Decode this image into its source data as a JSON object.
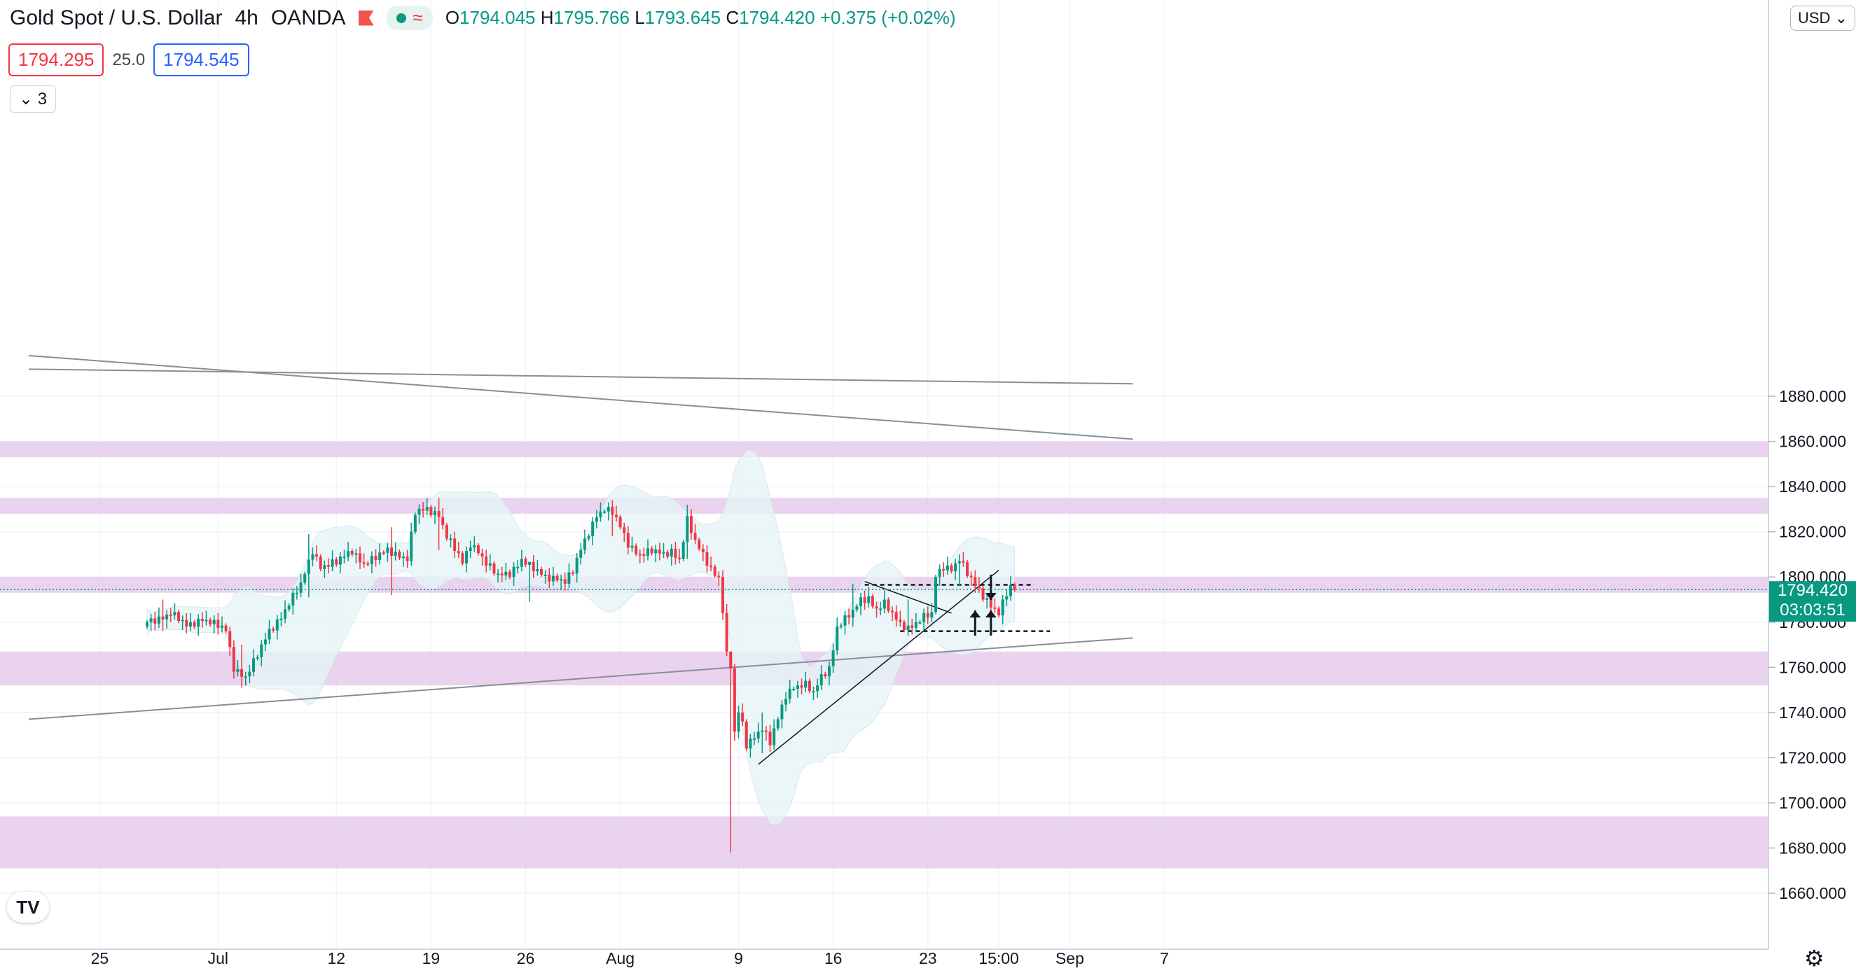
{
  "header": {
    "symbol": "Gold Spot / U.S. Dollar",
    "interval": "4h",
    "source": "OANDA",
    "ohlc": {
      "open_label": "O",
      "open": "1794.045",
      "high_label": "H",
      "high": "1795.766",
      "low_label": "L",
      "low": "1793.645",
      "close_label": "C",
      "close": "1794.420",
      "change": "+0.375 (+0.02%)"
    }
  },
  "trade": {
    "sell": "1794.295",
    "spread": "25.0",
    "buy": "1794.545"
  },
  "indicators_toggle": "3",
  "currency": "USD",
  "logo": "TV",
  "icons": {
    "settings": "gear-icon",
    "flag": "flag-icon",
    "toggle": "chevron-down-icon"
  },
  "colors": {
    "up": "#089981",
    "down": "#f23645",
    "zone": "#e1c4e9",
    "band": "#e6f4f7",
    "price_label": "#089981"
  },
  "chart_data": {
    "type": "candlestick",
    "ylim": [
      1655,
      1885
    ],
    "y_ticks": [
      1660,
      1680,
      1700,
      1720,
      1740,
      1760,
      1780,
      1800,
      1820,
      1840,
      1860,
      1880
    ],
    "y_tick_labels": [
      "1660.000",
      "1680.000",
      "1700.000",
      "1720.000",
      "1740.000",
      "1760.000",
      "1780.000",
      "1800.000",
      "1820.000",
      "1840.000",
      "1860.000",
      "1880.000"
    ],
    "x_tick_labels": [
      "25",
      "Jul",
      "12",
      "19",
      "26",
      "Aug",
      "9",
      "16",
      "23",
      "15:00",
      "Sep",
      "7"
    ],
    "x_tick_index": [
      -12,
      18,
      48,
      72,
      96,
      120,
      150,
      174,
      198,
      216,
      234,
      258
    ],
    "last_price": "1794.420",
    "countdown": "03:03:51",
    "zones": [
      [
        1853,
        1860
      ],
      [
        1828,
        1835
      ],
      [
        1793,
        1800
      ],
      [
        1752,
        1767
      ],
      [
        1671,
        1694
      ]
    ],
    "close_path": [
      [
        0,
        1780
      ],
      [
        6,
        1784
      ],
      [
        10,
        1778
      ],
      [
        14,
        1782
      ],
      [
        18,
        1778
      ],
      [
        20,
        1776
      ],
      [
        22,
        1760
      ],
      [
        25,
        1756
      ],
      [
        28,
        1765
      ],
      [
        31,
        1776
      ],
      [
        34,
        1783
      ],
      [
        37,
        1791
      ],
      [
        39,
        1796
      ],
      [
        42,
        1812
      ],
      [
        44,
        1805
      ],
      [
        48,
        1806
      ],
      [
        52,
        1812
      ],
      [
        55,
        1806
      ],
      [
        58,
        1808
      ],
      [
        61,
        1812
      ],
      [
        64,
        1810
      ],
      [
        66,
        1808
      ],
      [
        68,
        1828
      ],
      [
        71,
        1830
      ],
      [
        74,
        1828
      ],
      [
        76,
        1818
      ],
      [
        78,
        1812
      ],
      [
        80,
        1806
      ],
      [
        82,
        1815
      ],
      [
        84,
        1812
      ],
      [
        86,
        1806
      ],
      [
        89,
        1800
      ],
      [
        92,
        1802
      ],
      [
        95,
        1808
      ],
      [
        98,
        1803
      ],
      [
        101,
        1800
      ],
      [
        104,
        1800
      ],
      [
        106,
        1798
      ],
      [
        108,
        1802
      ],
      [
        110,
        1812
      ],
      [
        112,
        1820
      ],
      [
        114,
        1828
      ],
      [
        116,
        1830
      ],
      [
        118,
        1828
      ],
      [
        120,
        1822
      ],
      [
        122,
        1815
      ],
      [
        125,
        1810
      ],
      [
        128,
        1811
      ],
      [
        131,
        1810
      ],
      [
        133,
        1812
      ],
      [
        135,
        1808
      ],
      [
        137,
        1825
      ],
      [
        139,
        1815
      ],
      [
        141,
        1810
      ],
      [
        143,
        1804
      ],
      [
        145,
        1800
      ],
      [
        146,
        1785
      ],
      [
        147,
        1765
      ],
      [
        148,
        1760
      ],
      [
        149,
        1730
      ],
      [
        150,
        1740
      ],
      [
        151,
        1735
      ],
      [
        152,
        1726
      ],
      [
        154,
        1730
      ],
      [
        156,
        1733
      ],
      [
        158,
        1726
      ],
      [
        160,
        1737
      ],
      [
        162,
        1748
      ],
      [
        164,
        1752
      ],
      [
        167,
        1752
      ],
      [
        169,
        1748
      ],
      [
        171,
        1756
      ],
      [
        173,
        1760
      ],
      [
        175,
        1778
      ],
      [
        177,
        1781
      ],
      [
        179,
        1784
      ],
      [
        181,
        1790
      ],
      [
        183,
        1791
      ],
      [
        185,
        1786
      ],
      [
        187,
        1788
      ],
      [
        189,
        1783
      ],
      [
        191,
        1779
      ],
      [
        193,
        1778
      ],
      [
        195,
        1780
      ],
      [
        197,
        1782
      ],
      [
        199,
        1783
      ],
      [
        200,
        1800
      ],
      [
        202,
        1805
      ],
      [
        204,
        1804
      ],
      [
        206,
        1808
      ],
      [
        208,
        1801
      ],
      [
        210,
        1796
      ],
      [
        212,
        1792
      ],
      [
        214,
        1788
      ],
      [
        216,
        1784
      ],
      [
        218,
        1792
      ],
      [
        219,
        1795
      ],
      [
        220,
        1794.42
      ]
    ],
    "wicks": [
      {
        "i": 4,
        "low": 1776,
        "high": 1790
      },
      {
        "i": 24,
        "low": 1751,
        "high": 1770
      },
      {
        "i": 41,
        "low": 1791,
        "high": 1819
      },
      {
        "i": 62,
        "low": 1792,
        "high": 1822
      },
      {
        "i": 74,
        "low": 1812,
        "high": 1835
      },
      {
        "i": 97,
        "low": 1789,
        "high": 1806
      },
      {
        "i": 118,
        "low": 1818,
        "high": 1834
      },
      {
        "i": 137,
        "low": 1808,
        "high": 1832
      },
      {
        "i": 148,
        "low": 1678,
        "high": 1762
      },
      {
        "i": 156,
        "low": 1722,
        "high": 1740
      },
      {
        "i": 179,
        "low": 1778,
        "high": 1797
      },
      {
        "i": 193,
        "low": 1774,
        "high": 1790
      },
      {
        "i": 206,
        "low": 1796,
        "high": 1810
      },
      {
        "i": 214,
        "low": 1781,
        "high": 1797
      }
    ],
    "trendlines": [
      {
        "from": [
          -30,
          1892
        ],
        "to": [
          250,
          1885.5
        ],
        "style": "gray"
      },
      {
        "from": [
          -30,
          1898
        ],
        "to": [
          250,
          1861
        ],
        "style": "gray"
      },
      {
        "from": [
          -30,
          1737
        ],
        "to": [
          250,
          1773
        ],
        "style": "gray"
      },
      {
        "from": [
          155,
          1717
        ],
        "to": [
          216,
          1803
        ],
        "style": "black"
      },
      {
        "from": [
          182,
          1798
        ],
        "to": [
          204,
          1784
        ],
        "style": "black"
      },
      {
        "from": [
          182,
          1796.5
        ],
        "to": [
          225,
          1796.5
        ],
        "style": "dashed"
      },
      {
        "from": [
          191,
          1776
        ],
        "to": [
          229,
          1776
        ],
        "style": "dashed"
      }
    ],
    "arrows": [
      {
        "i": 214,
        "y": 1801,
        "dir": "down"
      },
      {
        "i": 210,
        "y": 1774,
        "dir": "up"
      },
      {
        "i": 214,
        "y": 1774,
        "dir": "up"
      }
    ]
  }
}
